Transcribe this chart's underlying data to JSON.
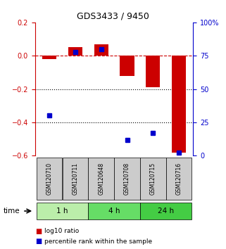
{
  "title": "GDS3433 / 9450",
  "samples": [
    "GSM120710",
    "GSM120711",
    "GSM120648",
    "GSM120708",
    "GSM120715",
    "GSM120716"
  ],
  "log10_ratio": [
    -0.022,
    0.05,
    0.07,
    -0.12,
    -0.19,
    -0.58
  ],
  "percentile_rank": [
    30,
    78,
    80,
    12,
    17,
    2
  ],
  "bar_color": "#cc0000",
  "dot_color": "#0000cc",
  "ylim_left": [
    -0.6,
    0.2
  ],
  "ylim_right": [
    0,
    100
  ],
  "yticks_left": [
    0.2,
    0.0,
    -0.2,
    -0.4,
    -0.6
  ],
  "yticks_right": [
    100,
    75,
    50,
    25,
    0
  ],
  "time_groups": [
    {
      "label": "1 h",
      "indices": [
        0,
        1
      ],
      "color": "#bbeeaa"
    },
    {
      "label": "4 h",
      "indices": [
        2,
        3
      ],
      "color": "#66dd66"
    },
    {
      "label": "24 h",
      "indices": [
        4,
        5
      ],
      "color": "#44cc44"
    }
  ],
  "dashed_line_color": "#cc0000",
  "dotted_line_color": "#000000",
  "bar_width": 0.55,
  "background_color": "#ffffff"
}
